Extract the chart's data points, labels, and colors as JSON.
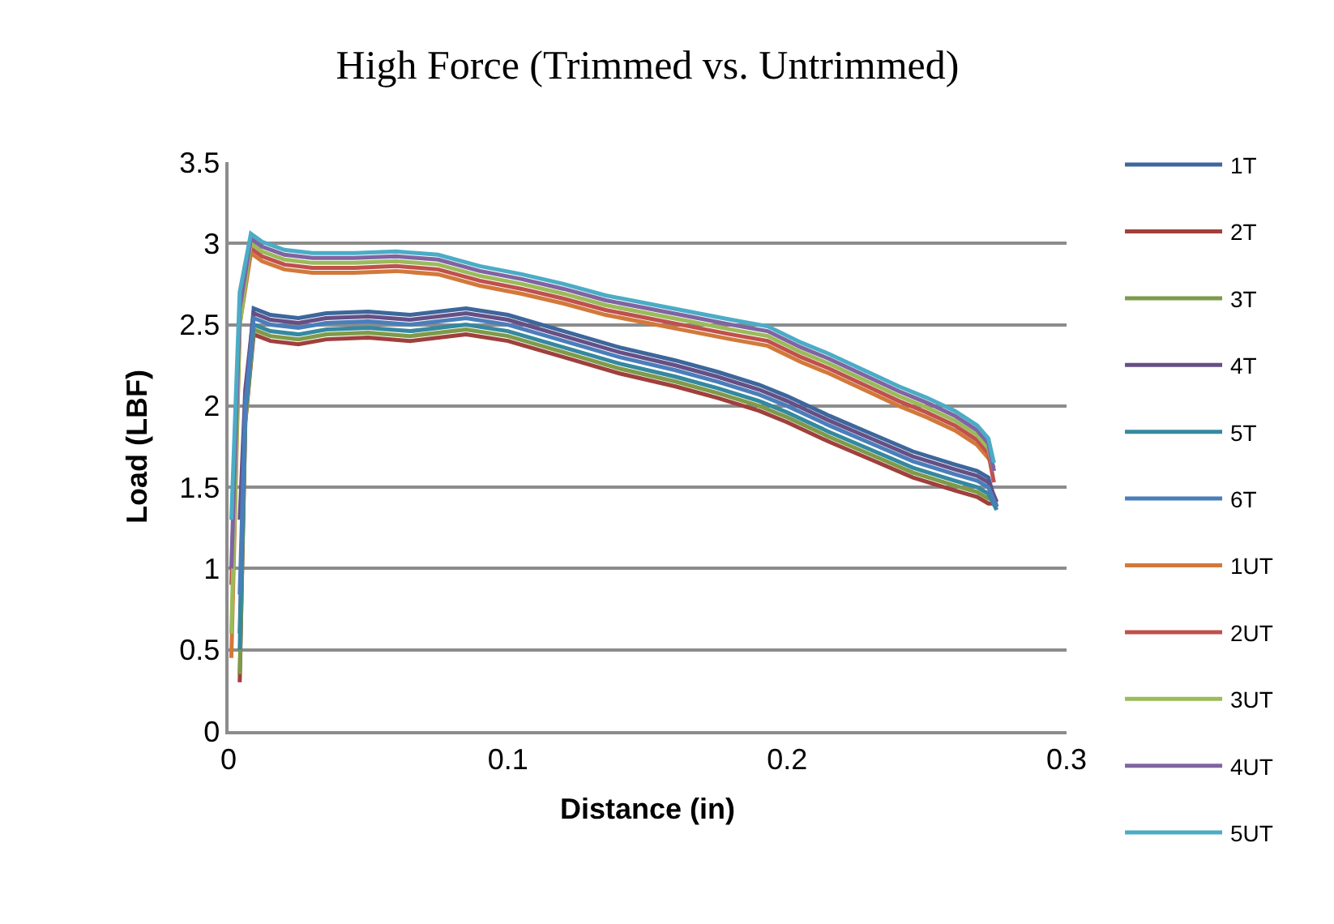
{
  "chart_data": {
    "type": "line",
    "title": "High Force (Trimmed vs. Untrimmed)",
    "xlabel": "Distance (in)",
    "ylabel": "Load (LBF)",
    "xlim": [
      0,
      0.3
    ],
    "xticks": [
      0,
      0.1,
      0.2,
      0.3
    ],
    "ylim": [
      0,
      3.5
    ],
    "yticks": [
      0,
      0.5,
      1,
      1.5,
      2,
      2.5,
      3,
      3.5
    ],
    "grid": "y",
    "legend": "right",
    "marker": "none",
    "line_style": "solid",
    "series": [
      {
        "name": "1T",
        "color": "#3d679c",
        "x": [
          0.004,
          0.006,
          0.009,
          0.015,
          0.025,
          0.035,
          0.05,
          0.065,
          0.085,
          0.1,
          0.12,
          0.14,
          0.16,
          0.175,
          0.19,
          0.2,
          0.215,
          0.23,
          0.245,
          0.26,
          0.268,
          0.272,
          0.275
        ],
        "values": [
          0.6,
          2.0,
          2.6,
          2.56,
          2.54,
          2.57,
          2.58,
          2.56,
          2.6,
          2.56,
          2.46,
          2.36,
          2.28,
          2.21,
          2.13,
          2.06,
          1.94,
          1.83,
          1.72,
          1.64,
          1.6,
          1.56,
          1.38
        ]
      },
      {
        "name": "2T",
        "color": "#a0403c",
        "x": [
          0.004,
          0.006,
          0.009,
          0.015,
          0.025,
          0.035,
          0.05,
          0.065,
          0.085,
          0.1,
          0.12,
          0.14,
          0.16,
          0.175,
          0.19,
          0.2,
          0.215,
          0.23,
          0.245,
          0.26,
          0.268,
          0.272,
          0.275
        ],
        "values": [
          0.3,
          1.9,
          2.44,
          2.4,
          2.38,
          2.41,
          2.42,
          2.4,
          2.44,
          2.4,
          2.3,
          2.2,
          2.12,
          2.05,
          1.97,
          1.9,
          1.78,
          1.67,
          1.56,
          1.48,
          1.44,
          1.4,
          1.4
        ]
      },
      {
        "name": "3T",
        "color": "#7f9a48",
        "x": [
          0.004,
          0.006,
          0.009,
          0.015,
          0.025,
          0.035,
          0.05,
          0.065,
          0.085,
          0.1,
          0.12,
          0.14,
          0.16,
          0.175,
          0.19,
          0.2,
          0.215,
          0.23,
          0.245,
          0.26,
          0.268,
          0.272,
          0.275
        ],
        "values": [
          0.35,
          1.9,
          2.47,
          2.43,
          2.41,
          2.44,
          2.45,
          2.43,
          2.47,
          2.43,
          2.33,
          2.23,
          2.15,
          2.08,
          2.0,
          1.93,
          1.81,
          1.7,
          1.59,
          1.51,
          1.47,
          1.43,
          1.42
        ]
      },
      {
        "name": "4T",
        "color": "#664f85",
        "x": [
          0.004,
          0.006,
          0.009,
          0.015,
          0.025,
          0.035,
          0.05,
          0.065,
          0.085,
          0.1,
          0.12,
          0.14,
          0.16,
          0.175,
          0.19,
          0.2,
          0.215,
          0.23,
          0.245,
          0.26,
          0.268,
          0.272,
          0.275
        ],
        "values": [
          1.3,
          2.1,
          2.57,
          2.53,
          2.51,
          2.54,
          2.55,
          2.53,
          2.57,
          2.53,
          2.43,
          2.33,
          2.25,
          2.18,
          2.1,
          2.03,
          1.91,
          1.8,
          1.69,
          1.61,
          1.57,
          1.53,
          1.41
        ]
      },
      {
        "name": "5T",
        "color": "#35899f",
        "x": [
          0.004,
          0.006,
          0.009,
          0.015,
          0.025,
          0.035,
          0.05,
          0.065,
          0.085,
          0.1,
          0.12,
          0.14,
          0.16,
          0.175,
          0.19,
          0.2,
          0.215,
          0.23,
          0.245,
          0.26,
          0.268,
          0.272,
          0.275
        ],
        "values": [
          0.5,
          1.95,
          2.5,
          2.46,
          2.44,
          2.47,
          2.48,
          2.46,
          2.5,
          2.46,
          2.36,
          2.26,
          2.18,
          2.11,
          2.03,
          1.96,
          1.84,
          1.73,
          1.62,
          1.54,
          1.5,
          1.46,
          1.36
        ]
      },
      {
        "name": "6T",
        "color": "#4a7ebb",
        "x": [
          0.004,
          0.006,
          0.009,
          0.015,
          0.025,
          0.035,
          0.05,
          0.065,
          0.085,
          0.1,
          0.12,
          0.14,
          0.16,
          0.175,
          0.19,
          0.2,
          0.215,
          0.23,
          0.245,
          0.26,
          0.268,
          0.272,
          0.275
        ],
        "values": [
          0.84,
          2.0,
          2.54,
          2.5,
          2.48,
          2.51,
          2.52,
          2.5,
          2.54,
          2.5,
          2.4,
          2.3,
          2.22,
          2.15,
          2.07,
          2.0,
          1.88,
          1.77,
          1.66,
          1.58,
          1.54,
          1.5,
          1.38
        ]
      },
      {
        "name": "1UT",
        "color": "#d2793a",
        "x": [
          0.001,
          0.004,
          0.008,
          0.012,
          0.02,
          0.03,
          0.045,
          0.06,
          0.075,
          0.09,
          0.105,
          0.12,
          0.135,
          0.15,
          0.165,
          0.18,
          0.193,
          0.205,
          0.215,
          0.23,
          0.24,
          0.25,
          0.26,
          0.268,
          0.272,
          0.274
        ],
        "values": [
          0.45,
          2.5,
          2.94,
          2.89,
          2.84,
          2.82,
          2.82,
          2.83,
          2.81,
          2.74,
          2.69,
          2.63,
          2.56,
          2.51,
          2.46,
          2.41,
          2.37,
          2.27,
          2.2,
          2.08,
          2.0,
          1.93,
          1.85,
          1.76,
          1.68,
          1.62
        ]
      },
      {
        "name": "2UT",
        "color": "#c0504d",
        "x": [
          0.001,
          0.004,
          0.008,
          0.012,
          0.02,
          0.03,
          0.045,
          0.06,
          0.075,
          0.09,
          0.105,
          0.12,
          0.135,
          0.15,
          0.165,
          0.18,
          0.193,
          0.205,
          0.215,
          0.23,
          0.24,
          0.25,
          0.26,
          0.268,
          0.272,
          0.274
        ],
        "values": [
          0.9,
          2.55,
          2.97,
          2.92,
          2.87,
          2.85,
          2.85,
          2.86,
          2.84,
          2.77,
          2.72,
          2.66,
          2.59,
          2.54,
          2.49,
          2.44,
          2.4,
          2.3,
          2.23,
          2.11,
          2.03,
          1.96,
          1.88,
          1.79,
          1.71,
          1.53
        ]
      },
      {
        "name": "3UT",
        "color": "#9bbb59",
        "x": [
          0.001,
          0.004,
          0.008,
          0.012,
          0.02,
          0.03,
          0.045,
          0.06,
          0.075,
          0.09,
          0.105,
          0.12,
          0.135,
          0.15,
          0.165,
          0.18,
          0.193,
          0.205,
          0.215,
          0.23,
          0.24,
          0.25,
          0.26,
          0.268,
          0.272,
          0.274
        ],
        "values": [
          0.6,
          2.5,
          3.0,
          2.95,
          2.9,
          2.88,
          2.88,
          2.89,
          2.87,
          2.8,
          2.75,
          2.69,
          2.62,
          2.57,
          2.52,
          2.47,
          2.43,
          2.33,
          2.26,
          2.14,
          2.06,
          1.99,
          1.91,
          1.82,
          1.74,
          1.6
        ]
      },
      {
        "name": "4UT",
        "color": "#8064a2",
        "x": [
          0.001,
          0.004,
          0.008,
          0.012,
          0.02,
          0.03,
          0.045,
          0.06,
          0.075,
          0.09,
          0.105,
          0.12,
          0.135,
          0.15,
          0.165,
          0.18,
          0.193,
          0.205,
          0.215,
          0.23,
          0.24,
          0.25,
          0.26,
          0.268,
          0.272,
          0.274
        ],
        "values": [
          1.0,
          2.6,
          3.03,
          2.98,
          2.93,
          2.91,
          2.91,
          2.92,
          2.9,
          2.83,
          2.78,
          2.72,
          2.65,
          2.6,
          2.55,
          2.5,
          2.46,
          2.36,
          2.29,
          2.17,
          2.09,
          2.02,
          1.94,
          1.85,
          1.77,
          1.6
        ]
      },
      {
        "name": "5UT",
        "color": "#4bacc6",
        "x": [
          0.001,
          0.004,
          0.008,
          0.012,
          0.02,
          0.03,
          0.045,
          0.06,
          0.075,
          0.09,
          0.105,
          0.12,
          0.135,
          0.15,
          0.165,
          0.18,
          0.193,
          0.205,
          0.215,
          0.23,
          0.24,
          0.25,
          0.26,
          0.268,
          0.272,
          0.274
        ],
        "values": [
          1.3,
          2.7,
          3.06,
          3.01,
          2.96,
          2.94,
          2.94,
          2.95,
          2.93,
          2.86,
          2.81,
          2.75,
          2.68,
          2.63,
          2.58,
          2.53,
          2.49,
          2.39,
          2.32,
          2.2,
          2.12,
          2.05,
          1.97,
          1.88,
          1.8,
          1.65
        ]
      }
    ]
  }
}
